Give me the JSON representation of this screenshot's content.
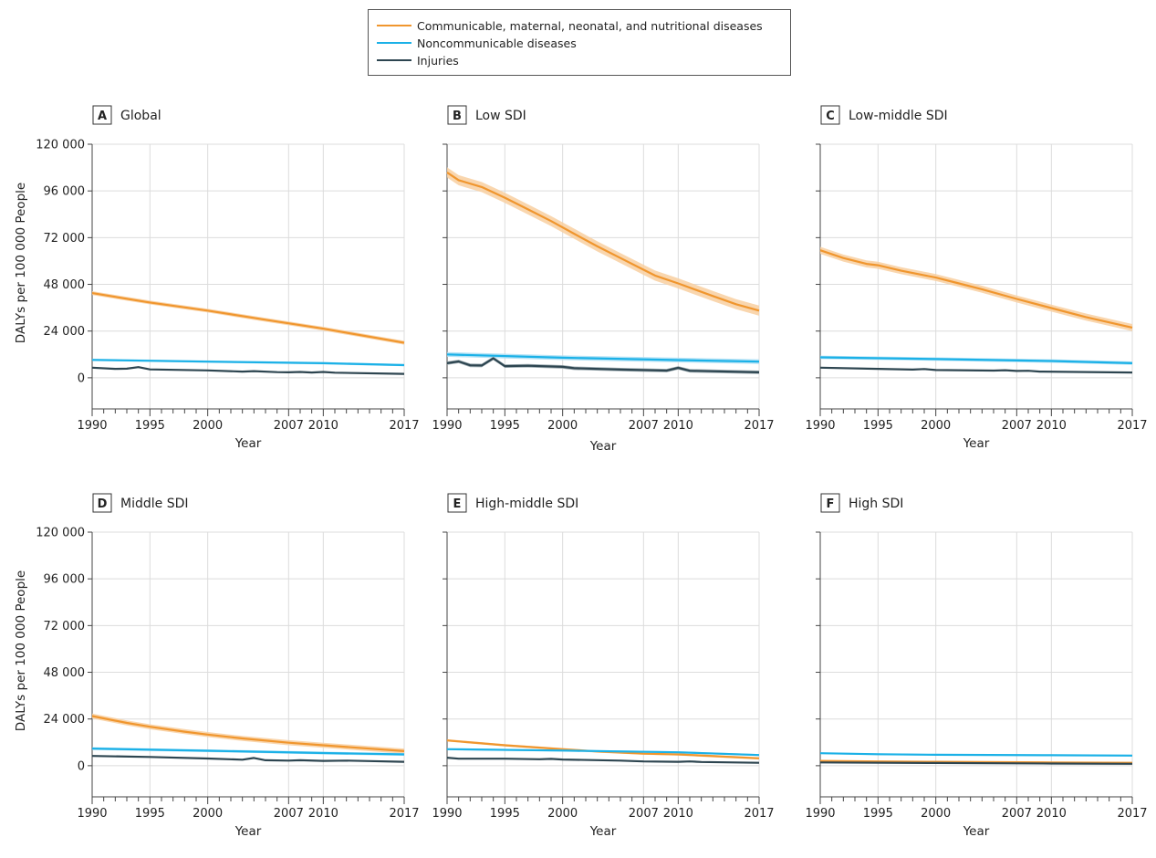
{
  "colors": {
    "cmnn": "#f0962e",
    "cmnn_band": "#f8cfa0",
    "ncd": "#1bb1e7",
    "ncd_band": "#a9def4",
    "inj": "#2d4550",
    "inj_band": "#8fa0a7",
    "grid": "#dcdcdc",
    "axis": "#444444"
  },
  "legend": [
    {
      "name": "Communicable, maternal, neonatal, and nutritional diseases",
      "color": "#f0962e"
    },
    {
      "name": "Noncommunicable diseases",
      "color": "#1bb1e7"
    },
    {
      "name": "Injuries",
      "color": "#2d4550"
    }
  ],
  "chart_data": {
    "type": "line",
    "ylabel": "DALYs per 100 000 People",
    "xlabel": "Year",
    "xlim": [
      1990,
      2017
    ],
    "ylim": [
      -16000,
      120000
    ],
    "x_ticks": [
      1990,
      1995,
      2000,
      2007,
      2010,
      2017
    ],
    "y_ticks": [
      0,
      24000,
      48000,
      72000,
      96000,
      120000
    ],
    "y_tick_labels": [
      "0",
      "24 000",
      "48 000",
      "72 000",
      "96 000",
      "120 000"
    ],
    "grid": true,
    "legend_position": "top-center",
    "panels": [
      {
        "letter": "A",
        "title": "Global",
        "series": [
          {
            "name": "Communicable, maternal, neonatal, and nutritional diseases",
            "x": [
              1990,
              1995,
              2000,
              2005,
              2010,
              2017
            ],
            "y": [
              43500,
              38700,
              34500,
              29800,
              25200,
              18000
            ],
            "band": 1000
          },
          {
            "name": "Noncommunicable diseases",
            "x": [
              1990,
              2000,
              2010,
              2017
            ],
            "y": [
              9200,
              8300,
              7500,
              6500
            ],
            "band": 600
          },
          {
            "name": "Injuries",
            "x": [
              1990,
              1992,
              1993,
              1994,
              1995,
              2000,
              2003,
              2004,
              2006,
              2007,
              2008,
              2009,
              2010,
              2011,
              2017
            ],
            "y": [
              5200,
              4600,
              4700,
              5500,
              4300,
              3800,
              3200,
              3400,
              2900,
              2800,
              3000,
              2700,
              3000,
              2600,
              2000
            ],
            "band": 250
          }
        ]
      },
      {
        "letter": "B",
        "title": "Low SDI",
        "series": [
          {
            "name": "Communicable, maternal, neonatal, and nutritional diseases",
            "x": [
              1990,
              1991,
              1993,
              1995,
              1997,
              1999,
              2001,
              2003,
              2005,
              2007,
              2008,
              2010,
              2013,
              2015,
              2017
            ],
            "y": [
              105500,
              101500,
              98000,
              92500,
              86500,
              80500,
              74000,
              67500,
              61500,
              55500,
              52500,
              48500,
              42000,
              37800,
              34500
            ],
            "band": 2600
          },
          {
            "name": "Noncommunicable diseases",
            "x": [
              1990,
              2000,
              2010,
              2017
            ],
            "y": [
              12000,
              10300,
              9100,
              8300
            ],
            "band": 1200
          },
          {
            "name": "Injuries",
            "x": [
              1990,
              1991,
              1992,
              1993,
              1994,
              1995,
              1997,
              2000,
              2001,
              2005,
              2009,
              2010,
              2011,
              2017
            ],
            "y": [
              7500,
              8400,
              6400,
              6300,
              10000,
              6000,
              6200,
              5600,
              4900,
              4200,
              3700,
              5100,
              3600,
              2800
            ],
            "band": 900
          }
        ]
      },
      {
        "letter": "C",
        "title": "Low-middle SDI",
        "series": [
          {
            "name": "Communicable, maternal, neonatal, and nutritional diseases",
            "x": [
              1990,
              1992,
              1994,
              1995,
              1997,
              2000,
              2002,
              2004,
              2007,
              2010,
              2013,
              2017
            ],
            "y": [
              65500,
              61500,
              58500,
              57800,
              55000,
              51500,
              48500,
              45500,
              40500,
              35800,
              31200,
              25800
            ],
            "band": 1800
          },
          {
            "name": "Noncommunicable diseases",
            "x": [
              1990,
              2000,
              2010,
              2017
            ],
            "y": [
              10500,
              9600,
              8600,
              7500
            ],
            "band": 900
          },
          {
            "name": "Injuries",
            "x": [
              1990,
              1995,
              1998,
              1999,
              2000,
              2005,
              2006,
              2007,
              2008,
              2009,
              2017
            ],
            "y": [
              5200,
              4600,
              4200,
              4500,
              4000,
              3700,
              3900,
              3500,
              3600,
              3200,
              2700
            ],
            "band": 350
          }
        ]
      },
      {
        "letter": "D",
        "title": "Middle SDI",
        "series": [
          {
            "name": "Communicable, maternal, neonatal, and nutritional diseases",
            "x": [
              1990,
              1993,
              1995,
              1998,
              2000,
              2003,
              2007,
              2010,
              2017
            ],
            "y": [
              25500,
              22000,
              20000,
              17500,
              16000,
              14000,
              11800,
              10500,
              7500
            ],
            "band": 1300
          },
          {
            "name": "Noncommunicable diseases",
            "x": [
              1990,
              2000,
              2010,
              2017
            ],
            "y": [
              8800,
              7700,
              6500,
              5800
            ],
            "band": 700
          },
          {
            "name": "Injuries",
            "x": [
              1990,
              1995,
              2000,
              2003,
              2004,
              2005,
              2007,
              2008,
              2010,
              2012,
              2014,
              2017
            ],
            "y": [
              5000,
              4500,
              3700,
              3100,
              4000,
              2800,
              2600,
              2800,
              2500,
              2600,
              2400,
              2000
            ],
            "band": 300
          }
        ]
      },
      {
        "letter": "E",
        "title": "High-middle SDI",
        "series": [
          {
            "name": "Communicable, maternal, neonatal, and nutritional diseases",
            "x": [
              1990,
              1993,
              1995,
              2000,
              2003,
              2007,
              2010,
              2017
            ],
            "y": [
              13000,
              11500,
              10500,
              8500,
              7300,
              6200,
              5800,
              3800
            ],
            "band": 600
          },
          {
            "name": "Noncommunicable diseases",
            "x": [
              1990,
              2000,
              2010,
              2017
            ],
            "y": [
              8500,
              7800,
              6900,
              5500
            ],
            "band": 500
          },
          {
            "name": "Injuries",
            "x": [
              1990,
              1991,
              1995,
              1998,
              1999,
              2000,
              2005,
              2007,
              2010,
              2011,
              2012,
              2017
            ],
            "y": [
              4100,
              3600,
              3600,
              3300,
              3500,
              3200,
              2600,
              2200,
              2000,
              2200,
              1900,
              1500
            ],
            "band": 250
          }
        ]
      },
      {
        "letter": "F",
        "title": "High SDI",
        "series": [
          {
            "name": "Communicable, maternal, neonatal, and nutritional diseases",
            "x": [
              1990,
              1995,
              2000,
              2010,
              2017
            ],
            "y": [
              2500,
              2200,
              2000,
              1700,
              1500
            ],
            "band": 250
          },
          {
            "name": "Noncommunicable diseases",
            "x": [
              1990,
              1995,
              2000,
              2010,
              2017
            ],
            "y": [
              6400,
              5900,
              5600,
              5400,
              5200
            ],
            "band": 400
          },
          {
            "name": "Injuries",
            "x": [
              1990,
              2000,
              2010,
              2017
            ],
            "y": [
              1700,
              1400,
              1100,
              1000
            ],
            "band": 120
          }
        ]
      }
    ]
  }
}
